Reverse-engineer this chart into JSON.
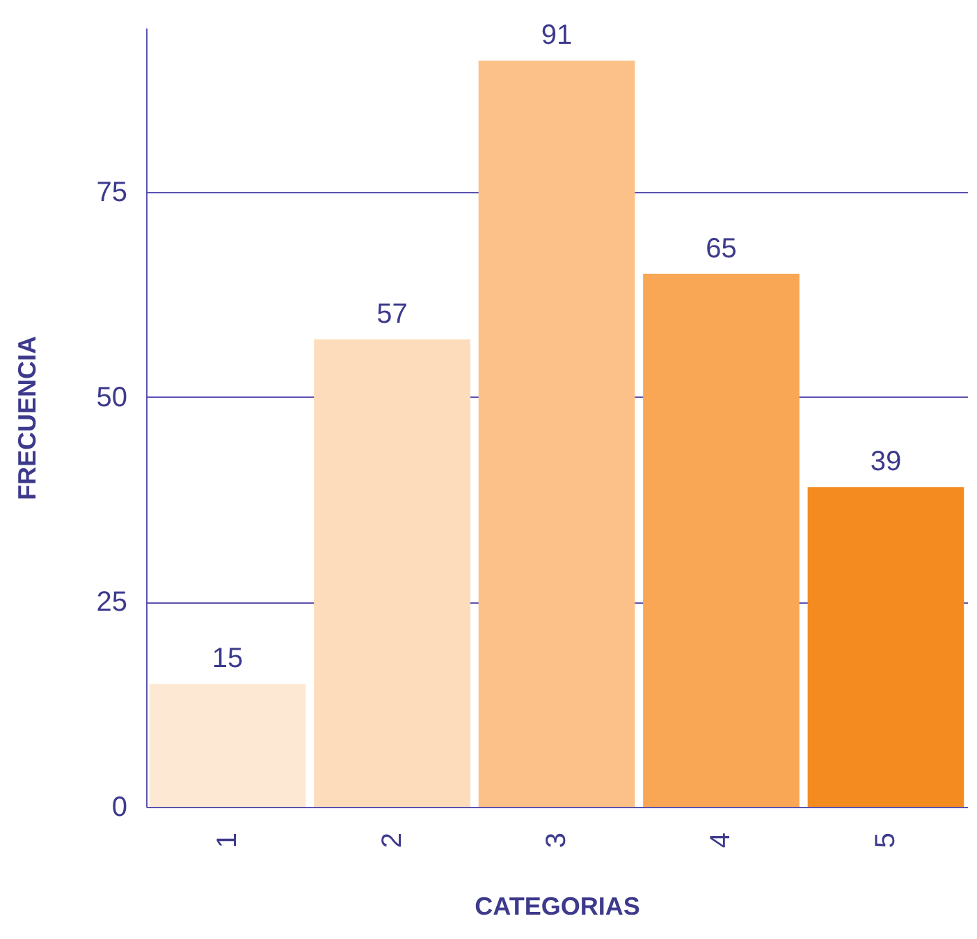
{
  "chart_data": {
    "type": "bar",
    "xlabel": "CATEGORIAS",
    "ylabel": "FRECUENCIA",
    "categories": [
      "1",
      "2",
      "3",
      "4",
      "5"
    ],
    "values": [
      15,
      57,
      91,
      65,
      39
    ],
    "colors": [
      "#fde8d4",
      "#fddcbb",
      "#fbc188",
      "#f9a655",
      "#f48b21"
    ],
    "ylim": [
      0,
      95
    ],
    "yticks": [
      0,
      25,
      50,
      75
    ],
    "grid": "y",
    "data_labels": true
  }
}
